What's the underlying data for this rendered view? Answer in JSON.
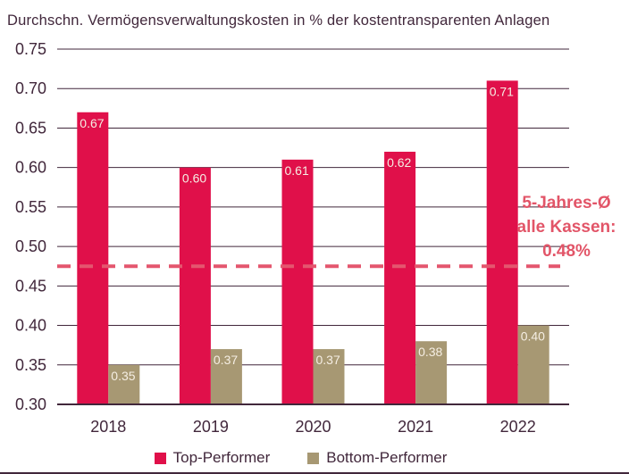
{
  "chart_data": {
    "type": "bar",
    "title": "Durchschn. Vermögensverwaltungskosten in % der kostentransparenten Anlagen",
    "categories": [
      "2018",
      "2019",
      "2020",
      "2021",
      "2022"
    ],
    "series": [
      {
        "name": "Top-Performer",
        "color": "#E0104A",
        "values": [
          0.67,
          0.6,
          0.61,
          0.62,
          0.71
        ]
      },
      {
        "name": "Bottom-Performer",
        "color": "#A79873",
        "values": [
          0.35,
          0.37,
          0.37,
          0.38,
          0.4
        ]
      }
    ],
    "ylim": [
      0.3,
      0.75
    ],
    "yticks": [
      "0.30",
      "0.35",
      "0.40",
      "0.45",
      "0.50",
      "0.55",
      "0.60",
      "0.65",
      "0.70",
      "0.75"
    ],
    "grid": true,
    "legend_position": "bottom",
    "bar_value_labels": [
      "0.67",
      "0.60",
      "0.61",
      "0.62",
      "0.71",
      "0.35",
      "0.37",
      "0.37",
      "0.38",
      "0.40"
    ],
    "reference_line": {
      "value": 0.475,
      "labeled_value": "0.48%",
      "label_lines": [
        "5-Jahres-Ø",
        "alle Kassen:",
        "0.48%"
      ],
      "style": "dashed",
      "color": "#E4566E"
    }
  },
  "colors": {
    "text": "#41273B",
    "grid": "#41273B",
    "axis": "#41273B",
    "bar_label": "#F5EEE3",
    "annotation": "#E25568",
    "background": "#FFFFFF"
  }
}
